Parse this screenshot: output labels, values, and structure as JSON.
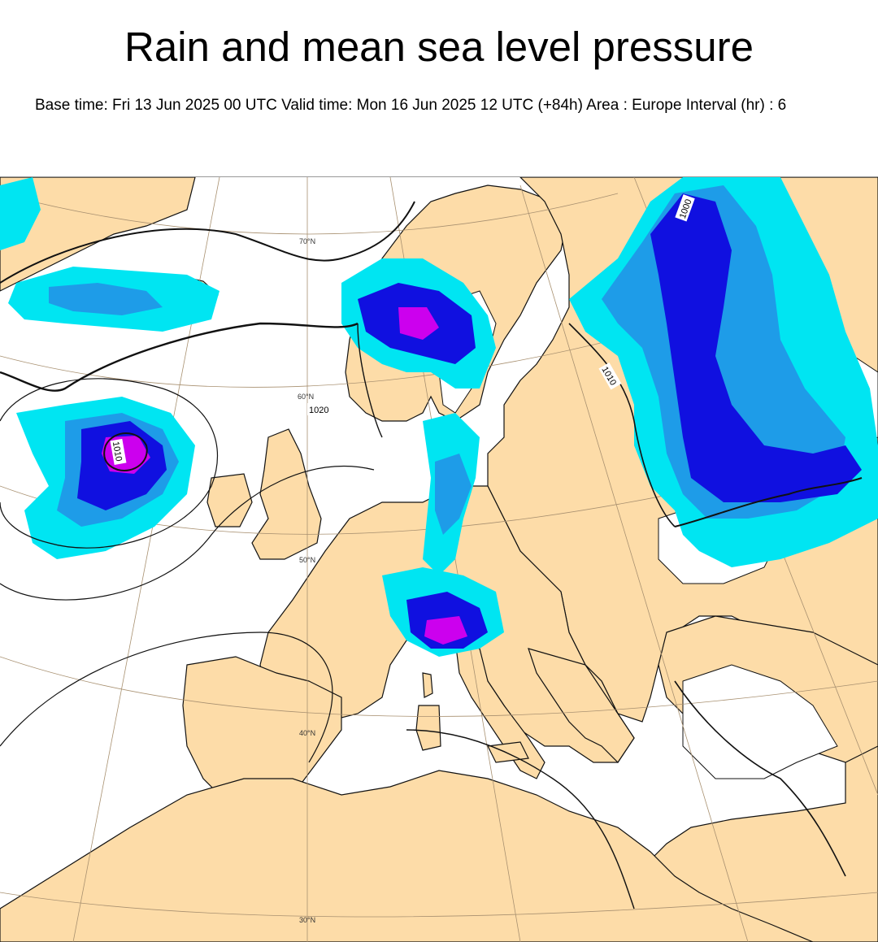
{
  "header": {
    "title": "Rain and mean sea level pressure",
    "subtitle": "Base time: Fri 13 Jun 2025 00 UTC Valid time: Mon 16 Jun 2025 12 UTC (+84h) Area : Europe Interval (hr) : 6"
  },
  "map": {
    "area": "Europe",
    "latitude_labels": [
      "70°N",
      "60°N",
      "50°N",
      "40°N",
      "30°N"
    ],
    "isobar_labels": [
      "1020",
      "1010",
      "1010",
      "1000"
    ],
    "colors": {
      "land": "#fddca8",
      "sea": "#ffffff",
      "rain_light": "#00e5f2",
      "rain_moderate": "#1e9ce8",
      "rain_heavy": "#1010e0",
      "rain_very_heavy": "#cc00ee",
      "isobar": "#111111",
      "graticule": "#a89070"
    }
  }
}
